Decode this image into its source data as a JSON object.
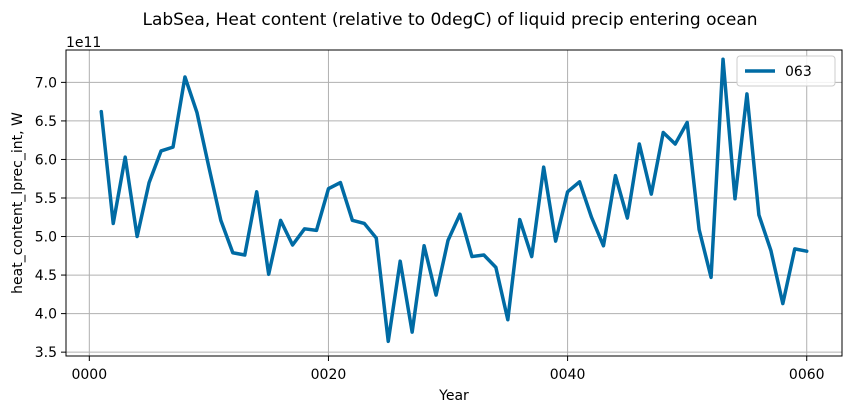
{
  "chart_data": {
    "type": "line",
    "title": "LabSea, Heat content (relative to 0degC) of liquid precip entering ocean",
    "xlabel": "Year",
    "ylabel": "heat_content_lprec_int, W",
    "y_offset_label": "1e11",
    "x_ticks": [
      0,
      20,
      40,
      60
    ],
    "x_tick_labels": [
      "0000",
      "0020",
      "0040",
      "0060"
    ],
    "y_ticks": [
      3.5,
      4.0,
      4.5,
      5.0,
      5.5,
      6.0,
      6.5,
      7.0
    ],
    "y_tick_labels": [
      "3.5",
      "4.0",
      "4.5",
      "5.0",
      "5.5",
      "6.0",
      "6.5",
      "7.0"
    ],
    "xlim": [
      -1.95,
      62.95
    ],
    "ylim": [
      3.45,
      7.42
    ],
    "grid": true,
    "legend_position": "upper right",
    "color": "#006ba4",
    "series": [
      {
        "name": "063",
        "x": [
          1,
          2,
          3,
          4,
          5,
          6,
          7,
          8,
          9,
          10,
          11,
          12,
          13,
          14,
          15,
          16,
          17,
          18,
          19,
          20,
          21,
          22,
          23,
          24,
          25,
          26,
          27,
          28,
          29,
          30,
          31,
          32,
          33,
          34,
          35,
          36,
          37,
          38,
          39,
          40,
          41,
          42,
          43,
          44,
          45,
          46,
          47,
          48,
          49,
          50,
          51,
          52,
          53,
          54,
          55,
          56,
          57,
          58,
          59,
          60
        ],
        "values": [
          6.62,
          5.17,
          6.03,
          5.0,
          5.7,
          6.11,
          6.16,
          7.07,
          6.61,
          5.9,
          5.21,
          4.79,
          4.76,
          5.58,
          4.51,
          5.21,
          4.89,
          5.1,
          5.08,
          5.62,
          5.7,
          5.21,
          5.17,
          4.98,
          3.64,
          4.68,
          3.76,
          4.88,
          4.24,
          4.95,
          5.29,
          4.74,
          4.76,
          4.6,
          3.92,
          5.22,
          4.74,
          5.9,
          4.94,
          5.58,
          5.71,
          5.25,
          4.88,
          5.79,
          5.24,
          6.2,
          5.55,
          6.35,
          6.2,
          6.48,
          5.09,
          4.47,
          7.3,
          5.49,
          6.85,
          5.28,
          4.82,
          4.13,
          4.84,
          4.81
        ]
      }
    ]
  }
}
